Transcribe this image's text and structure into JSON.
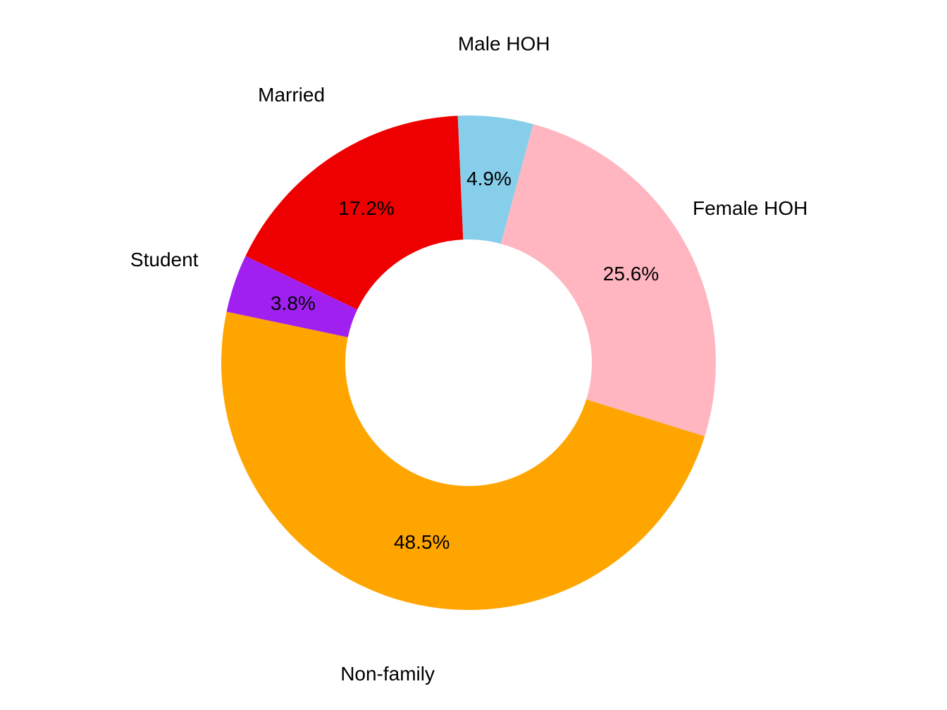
{
  "chart_data": {
    "type": "pie",
    "variant": "donut",
    "title": "",
    "direction": "clockwise",
    "start_slice": "Married",
    "slices": [
      {
        "category": "Married",
        "value": 17.2,
        "label": "17.2%",
        "color": "#EE0000"
      },
      {
        "category": "Student",
        "value": 3.8,
        "label": "3.8%",
        "color": "#A020F0"
      },
      {
        "category": "Non-family",
        "value": 48.5,
        "label": "48.5%",
        "color": "#FFA500"
      },
      {
        "category": "Female HOH",
        "value": 25.6,
        "label": "25.6%",
        "color": "#FFB6C1"
      },
      {
        "category": "Male HOH",
        "value": 4.9,
        "label": "4.9%",
        "color": "#87CEEB"
      }
    ]
  }
}
